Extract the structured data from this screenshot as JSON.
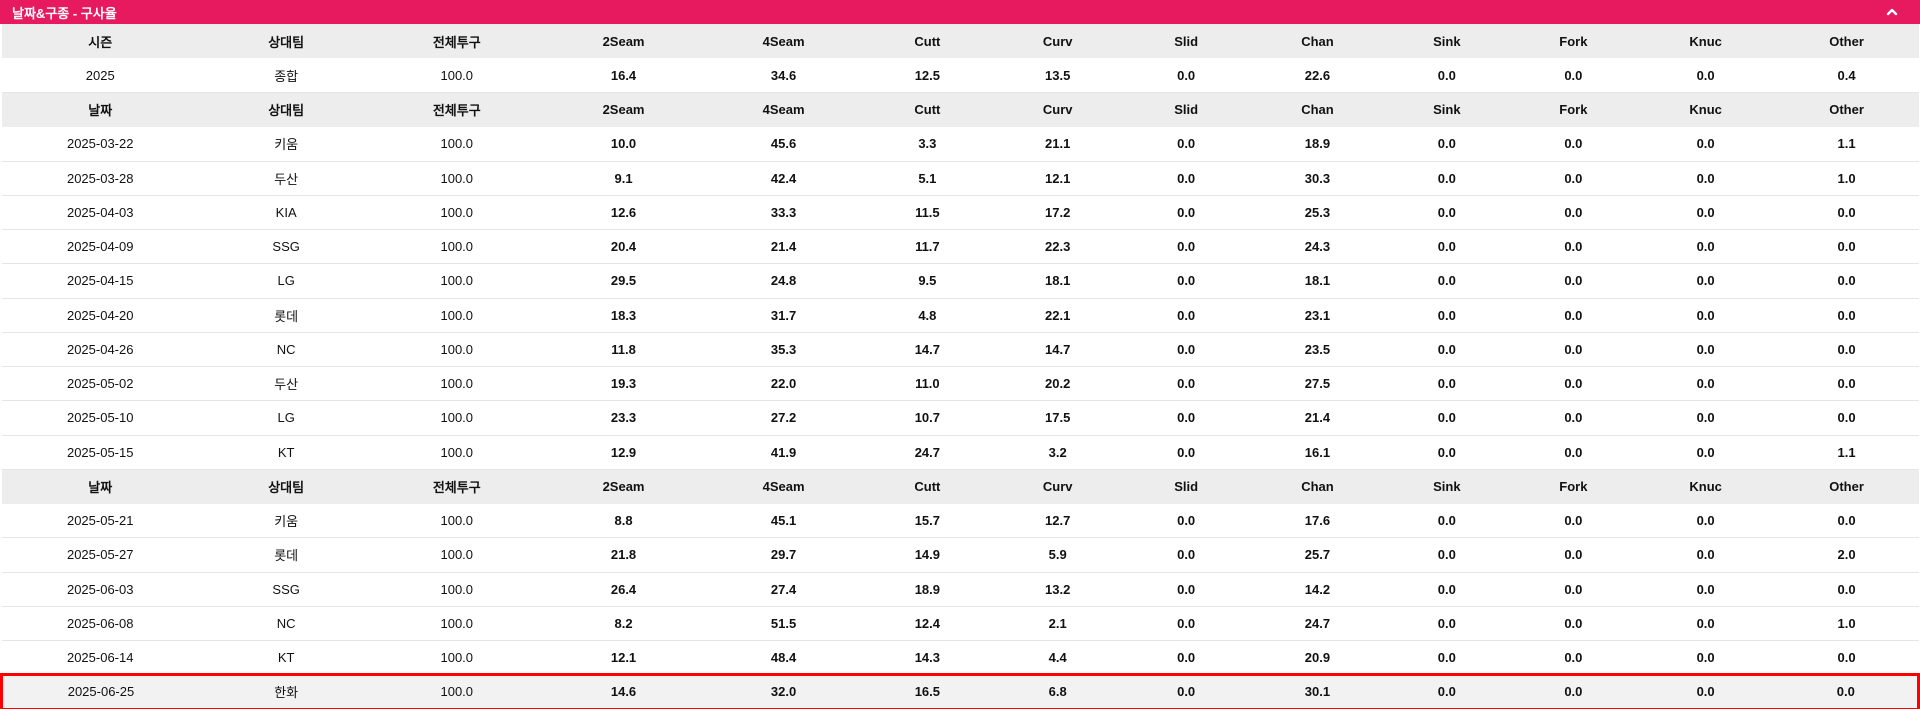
{
  "panel": {
    "title": "날짜&구종 - 구사율"
  },
  "icons": {
    "collapse": "chevron-up"
  },
  "colors": {
    "header_bar_bg": "#e7195f",
    "header_bar_text": "#ffffff",
    "col_header_bg": "#ededed",
    "text": "#111111",
    "row_border": "#e6e6e6",
    "zero": "#9e9e9e",
    "low": "#1e7de6",
    "mid": "#0a0ad2",
    "high": "#0a7d0a",
    "very_high": "#ef2f26",
    "highlight_border": "#ff0000",
    "highlight_bg": "#f2f2f2"
  },
  "table": {
    "column_widths_pct": [
      10.3,
      9.1,
      8.7,
      8.7,
      8.0,
      7.0,
      6.6,
      6.8,
      6.9,
      6.6,
      6.6,
      7.2,
      7.5
    ],
    "value_color_thresholds": {
      "low_max": 15,
      "mid_max": 30,
      "high_max": 50
    },
    "rows": [
      {
        "type": "header",
        "cells": [
          "시즌",
          "상대팀",
          "전체투구",
          "2Seam",
          "4Seam",
          "Cutt",
          "Curv",
          "Slid",
          "Chan",
          "Sink",
          "Fork",
          "Knuc",
          "Other"
        ]
      },
      {
        "type": "data",
        "cells": [
          "2025",
          "종합",
          "100.0",
          "16.4",
          "34.6",
          "12.5",
          "13.5",
          "0.0",
          "22.6",
          "0.0",
          "0.0",
          "0.0",
          "0.4"
        ]
      },
      {
        "type": "header",
        "cells": [
          "날짜",
          "상대팀",
          "전체투구",
          "2Seam",
          "4Seam",
          "Cutt",
          "Curv",
          "Slid",
          "Chan",
          "Sink",
          "Fork",
          "Knuc",
          "Other"
        ]
      },
      {
        "type": "data",
        "cells": [
          "2025-03-22",
          "키움",
          "100.0",
          "10.0",
          "45.6",
          "3.3",
          "21.1",
          "0.0",
          "18.9",
          "0.0",
          "0.0",
          "0.0",
          "1.1"
        ]
      },
      {
        "type": "data",
        "cells": [
          "2025-03-28",
          "두산",
          "100.0",
          "9.1",
          "42.4",
          "5.1",
          "12.1",
          "0.0",
          "30.3",
          "0.0",
          "0.0",
          "0.0",
          "1.0"
        ]
      },
      {
        "type": "data",
        "cells": [
          "2025-04-03",
          "KIA",
          "100.0",
          "12.6",
          "33.3",
          "11.5",
          "17.2",
          "0.0",
          "25.3",
          "0.0",
          "0.0",
          "0.0",
          "0.0"
        ]
      },
      {
        "type": "data",
        "cells": [
          "2025-04-09",
          "SSG",
          "100.0",
          "20.4",
          "21.4",
          "11.7",
          "22.3",
          "0.0",
          "24.3",
          "0.0",
          "0.0",
          "0.0",
          "0.0"
        ]
      },
      {
        "type": "data",
        "cells": [
          "2025-04-15",
          "LG",
          "100.0",
          "29.5",
          "24.8",
          "9.5",
          "18.1",
          "0.0",
          "18.1",
          "0.0",
          "0.0",
          "0.0",
          "0.0"
        ]
      },
      {
        "type": "data",
        "cells": [
          "2025-04-20",
          "롯데",
          "100.0",
          "18.3",
          "31.7",
          "4.8",
          "22.1",
          "0.0",
          "23.1",
          "0.0",
          "0.0",
          "0.0",
          "0.0"
        ]
      },
      {
        "type": "data",
        "cells": [
          "2025-04-26",
          "NC",
          "100.0",
          "11.8",
          "35.3",
          "14.7",
          "14.7",
          "0.0",
          "23.5",
          "0.0",
          "0.0",
          "0.0",
          "0.0"
        ]
      },
      {
        "type": "data",
        "cells": [
          "2025-05-02",
          "두산",
          "100.0",
          "19.3",
          "22.0",
          "11.0",
          "20.2",
          "0.0",
          "27.5",
          "0.0",
          "0.0",
          "0.0",
          "0.0"
        ]
      },
      {
        "type": "data",
        "cells": [
          "2025-05-10",
          "LG",
          "100.0",
          "23.3",
          "27.2",
          "10.7",
          "17.5",
          "0.0",
          "21.4",
          "0.0",
          "0.0",
          "0.0",
          "0.0"
        ]
      },
      {
        "type": "data",
        "cells": [
          "2025-05-15",
          "KT",
          "100.0",
          "12.9",
          "41.9",
          "24.7",
          "3.2",
          "0.0",
          "16.1",
          "0.0",
          "0.0",
          "0.0",
          "1.1"
        ]
      },
      {
        "type": "header",
        "cells": [
          "날짜",
          "상대팀",
          "전체투구",
          "2Seam",
          "4Seam",
          "Cutt",
          "Curv",
          "Slid",
          "Chan",
          "Sink",
          "Fork",
          "Knuc",
          "Other"
        ]
      },
      {
        "type": "data",
        "cells": [
          "2025-05-21",
          "키움",
          "100.0",
          "8.8",
          "45.1",
          "15.7",
          "12.7",
          "0.0",
          "17.6",
          "0.0",
          "0.0",
          "0.0",
          "0.0"
        ]
      },
      {
        "type": "data",
        "cells": [
          "2025-05-27",
          "롯데",
          "100.0",
          "21.8",
          "29.7",
          "14.9",
          "5.9",
          "0.0",
          "25.7",
          "0.0",
          "0.0",
          "0.0",
          "2.0"
        ]
      },
      {
        "type": "data",
        "cells": [
          "2025-06-03",
          "SSG",
          "100.0",
          "26.4",
          "27.4",
          "18.9",
          "13.2",
          "0.0",
          "14.2",
          "0.0",
          "0.0",
          "0.0",
          "0.0"
        ]
      },
      {
        "type": "data",
        "cells": [
          "2025-06-08",
          "NC",
          "100.0",
          "8.2",
          "51.5",
          "12.4",
          "2.1",
          "0.0",
          "24.7",
          "0.0",
          "0.0",
          "0.0",
          "1.0"
        ]
      },
      {
        "type": "data",
        "cells": [
          "2025-06-14",
          "KT",
          "100.0",
          "12.1",
          "48.4",
          "14.3",
          "4.4",
          "0.0",
          "20.9",
          "0.0",
          "0.0",
          "0.0",
          "0.0"
        ]
      },
      {
        "type": "data",
        "highlight": true,
        "cells": [
          "2025-06-25",
          "한화",
          "100.0",
          "14.6",
          "32.0",
          "16.5",
          "6.8",
          "0.0",
          "30.1",
          "0.0",
          "0.0",
          "0.0",
          "0.0"
        ]
      }
    ]
  }
}
